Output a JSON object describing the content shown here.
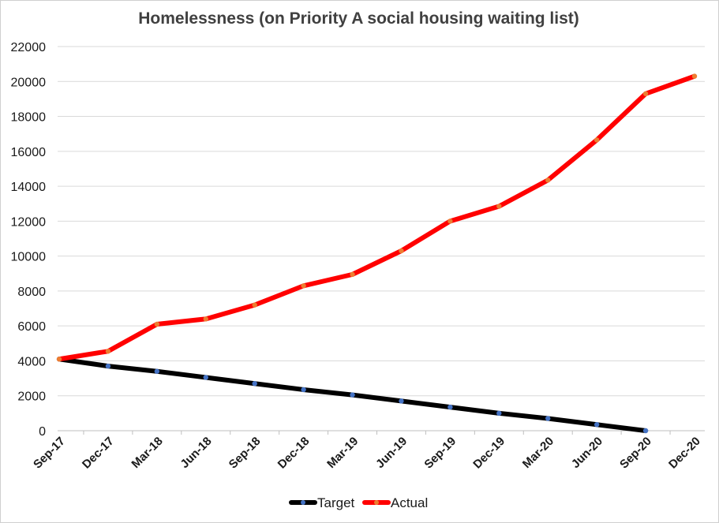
{
  "chart_data": {
    "type": "line",
    "title": "Homelessness (on Priority A social housing waiting list)",
    "xlabel": "",
    "ylabel": "",
    "ylim": [
      0,
      22000
    ],
    "ytick_labels": [
      "0",
      "2000",
      "4000",
      "6000",
      "8000",
      "10000",
      "12000",
      "14000",
      "16000",
      "18000",
      "20000",
      "22000"
    ],
    "yticks": [
      0,
      2000,
      4000,
      6000,
      8000,
      10000,
      12000,
      14000,
      16000,
      18000,
      20000,
      22000
    ],
    "grid": true,
    "legend_position": "bottom",
    "categories": [
      "Sep-17",
      "Dec-17",
      "Mar-18",
      "Jun-18",
      "Sep-18",
      "Dec-18",
      "Mar-19",
      "Jun-19",
      "Sep-19",
      "Dec-19",
      "Mar-20",
      "Jun-20",
      "Sep-20",
      "Dec-20"
    ],
    "series": [
      {
        "name": "Target",
        "line_color": "#000000",
        "marker_color": "#4472c4",
        "values": [
          4100,
          3700,
          3400,
          3050,
          2700,
          2350,
          2050,
          1700,
          1350,
          1000,
          700,
          350,
          0,
          null
        ]
      },
      {
        "name": "Actual",
        "line_color": "#ff0000",
        "marker_color": "#ed7d31",
        "values": [
          4100,
          4550,
          6100,
          6400,
          7200,
          8300,
          8950,
          10300,
          12000,
          12850,
          14350,
          16650,
          19300,
          20300
        ]
      }
    ]
  }
}
